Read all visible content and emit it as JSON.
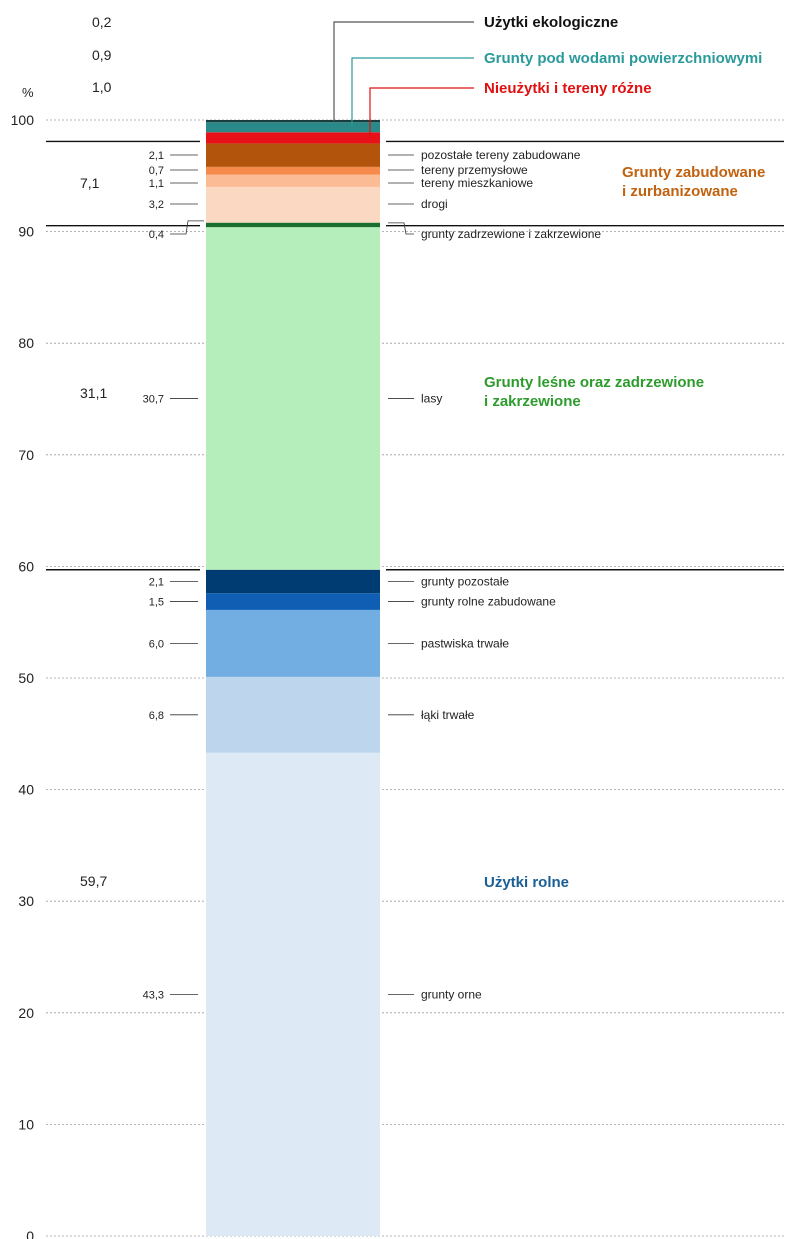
{
  "chart_data": {
    "type": "bar",
    "stacked": true,
    "ylabel": "%",
    "ylim": [
      0,
      100
    ],
    "yticks": [
      0,
      10,
      20,
      30,
      40,
      50,
      60,
      70,
      80,
      90,
      100
    ],
    "grid": "dashed horizontal",
    "segments": [
      {
        "name": "grunty orne",
        "value": 43.3,
        "label": "43,3",
        "group": "Użytki rolne",
        "color": "#dde9f4"
      },
      {
        "name": "łąki trwałe",
        "value": 6.8,
        "label": "6,8",
        "group": "Użytki rolne",
        "color": "#bdd6ed"
      },
      {
        "name": "pastwiska trwałe",
        "value": 6.0,
        "label": "6,0",
        "group": "Użytki rolne",
        "color": "#72aee2"
      },
      {
        "name": "grunty rolne zabudowane",
        "value": 1.5,
        "label": "1,5",
        "group": "Użytki rolne",
        "color": "#0f5eb4"
      },
      {
        "name": "grunty pozostałe",
        "value": 2.1,
        "label": "2,1",
        "group": "Użytki rolne",
        "color": "#003b72"
      },
      {
        "name": "lasy",
        "value": 30.7,
        "label": "30,7",
        "group": "Grunty leśne oraz zadrzewione i zakrzewione",
        "color": "#b6eebb"
      },
      {
        "name": "grunty zadrzewione  i zakrzewione",
        "value": 0.4,
        "label": "0,4",
        "group": "Grunty leśne oraz zadrzewione i zakrzewione",
        "color": "#1a6e2e"
      },
      {
        "name": "drogi",
        "value": 3.2,
        "label": "3,2",
        "group": "Grunty zabudowane i zurbanizowane",
        "color": "#fbd8c2"
      },
      {
        "name": "tereny mieszkaniowe",
        "value": 1.1,
        "label": "1,1",
        "group": "Grunty zabudowane i zurbanizowane",
        "color": "#fbbb95"
      },
      {
        "name": "tereny przemysłowe",
        "value": 0.7,
        "label": "0,7",
        "group": "Grunty zabudowane i zurbanizowane",
        "color": "#f58a4c"
      },
      {
        "name": "pozostałe tereny zabudowane",
        "value": 2.1,
        "label": "2,1",
        "group": "Grunty zabudowane i zurbanizowane",
        "color": "#b3540c"
      },
      {
        "name": "Nieużytki i tereny różne",
        "value": 1.0,
        "label": "1,0",
        "group": "Nieużytki i tereny różne",
        "color": "#e8111a"
      },
      {
        "name": "Grunty pod wodami powierzchniowymi",
        "value": 0.9,
        "label": "0,9",
        "group": "Grunty pod wodami powierzchniowymi",
        "color": "#2a8a8a"
      },
      {
        "name": "Użytki ekologiczne",
        "value": 0.2,
        "label": "0,2",
        "group": "Użytki ekologiczne",
        "color": "#1a3d3d"
      }
    ],
    "groups": [
      {
        "name": "Użytki rolne",
        "total": "59,7",
        "color": "#1a5f96"
      },
      {
        "name": "Grunty leśne oraz zadrzewione",
        "name2": "i zakrzewione",
        "total": "31,1",
        "color": "#2d9c2d"
      },
      {
        "name": "Grunty zabudowane",
        "name2": "i zurbanizowane",
        "total": "7,1",
        "color": "#c0620f"
      },
      {
        "name": "Nieużytki i tereny różne",
        "total": "1,0",
        "color": "#e01010"
      },
      {
        "name": "Grunty pod wodami powierzchniowymi",
        "total": "0,9",
        "color": "#2a9a9a"
      },
      {
        "name": "Użytki ekologiczne",
        "total": "0,2",
        "color": "#111111"
      }
    ]
  }
}
